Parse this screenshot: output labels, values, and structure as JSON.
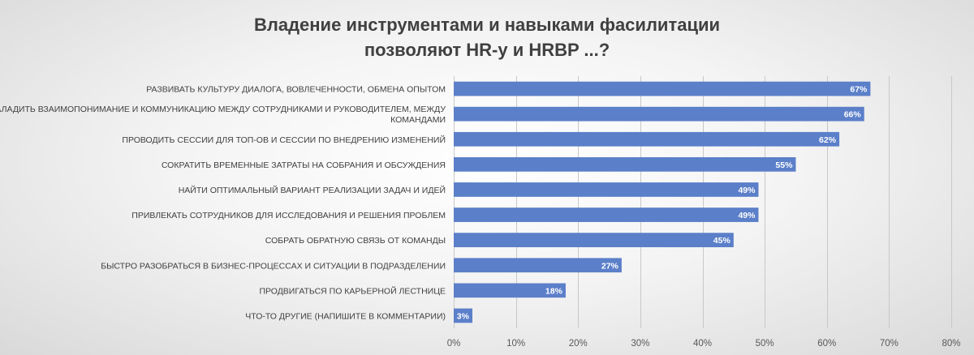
{
  "chart_data": {
    "type": "bar",
    "orientation": "horizontal",
    "title_lines": [
      "Владение инструментами и навыками фасилитации",
      "позволяют HR-у и HRBP ...?"
    ],
    "categories": [
      [
        "РАЗВИВАТЬ КУЛЬТУРУ ДИАЛОГА, ВОВЛЕЧЕННОСТИ, ОБМЕНА ОПЫТОМ"
      ],
      [
        "НАЛАДИТЬ ВЗАИМОПОНИМАНИЕ И КОММУНИКАЦИЮ МЕЖДУ СОТРУДНИКАМИ И РУКОВОДИТЕЛЕМ, МЕЖДУ",
        "КОМАНДАМИ"
      ],
      [
        "ПРОВОДИТЬ СЕССИИ ДЛЯ ТОП-ОВ И СЕССИИ ПО ВНЕДРЕНИЮ ИЗМЕНЕНИЙ"
      ],
      [
        "СОКРАТИТЬ ВРЕМЕННЫЕ ЗАТРАТЫ НА СОБРАНИЯ И ОБСУЖДЕНИЯ"
      ],
      [
        "НАЙТИ ОПТИМАЛЬНЫЙ ВАРИАНТ РЕАЛИЗАЦИИ ЗАДАЧ И ИДЕЙ"
      ],
      [
        "ПРИВЛЕКАТЬ СОТРУДНИКОВ ДЛЯ ИССЛЕДОВАНИЯ И РЕШЕНИЯ ПРОБЛЕМ"
      ],
      [
        "СОБРАТЬ ОБРАТНУЮ СВЯЗЬ ОТ КОМАНДЫ"
      ],
      [
        "БЫСТРО РАЗОБРАТЬСЯ В БИЗНЕС-ПРОЦЕССАХ И СИТУАЦИИ В ПОДРАЗДЕЛЕНИИ"
      ],
      [
        "ПРОДВИГАТЬСЯ ПО КАРЬЕРНОЙ ЛЕСТНИЦЕ"
      ],
      [
        "ЧТО-ТО ДРУГИЕ (НАПИШИТЕ В КОММЕНТАРИИ)"
      ]
    ],
    "values": [
      67,
      66,
      62,
      55,
      49,
      49,
      45,
      27,
      18,
      3
    ],
    "data_labels": [
      "67%",
      "66%",
      "62%",
      "55%",
      "49%",
      "49%",
      "45%",
      "27%",
      "18%",
      "3%"
    ],
    "xlim": [
      0,
      80
    ],
    "x_ticks": [
      0,
      10,
      20,
      30,
      40,
      50,
      60,
      70,
      80
    ],
    "x_tick_labels": [
      "0%",
      "10%",
      "20%",
      "30%",
      "40%",
      "50%",
      "60%",
      "70%",
      "80%"
    ],
    "grid": true,
    "legend": "none",
    "bar_color": "#5b7fc9"
  }
}
